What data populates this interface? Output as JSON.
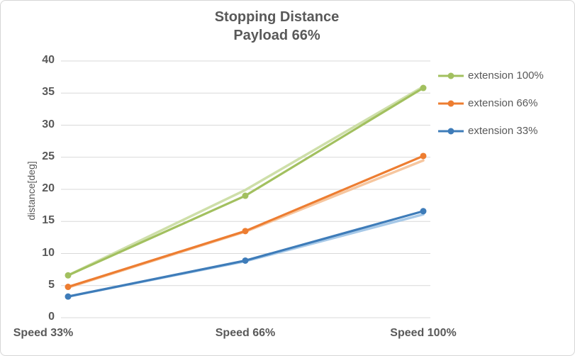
{
  "title": {
    "line1": "Stopping Distance",
    "line2": "Payload 66%"
  },
  "axes": {
    "y_label": "distance[deg]",
    "y_ticks": [
      0,
      5,
      10,
      15,
      20,
      25,
      30,
      35,
      40
    ],
    "x_categories": [
      "Speed 33%",
      "Speed 66%",
      "Speed 100%"
    ]
  },
  "legend": {
    "items": [
      {
        "label": "extension 100%"
      },
      {
        "label": "extension 66%"
      },
      {
        "label": "extension 33%"
      }
    ]
  },
  "colors": {
    "grid": "#D9D9D9",
    "text": "#595959",
    "frame": "#D6D6D6"
  },
  "chart_data": {
    "type": "line",
    "title": "Stopping Distance Payload 66%",
    "xlabel": "",
    "ylabel": "distance[deg]",
    "ylim": [
      0,
      40
    ],
    "grid": true,
    "legend_position": "right",
    "categories": [
      "Speed 33%",
      "Speed 66%",
      "Speed 100%"
    ],
    "series": [
      {
        "name": "extension 100%",
        "color": "#A2C05F",
        "shadow_color": "#C9DCA0",
        "values": [
          6.6,
          19.0,
          35.8
        ],
        "shadow_values": [
          6.6,
          19.9,
          36.0
        ]
      },
      {
        "name": "extension 66%",
        "color": "#ED7D31",
        "shadow_color": "#F5C095",
        "values": [
          4.8,
          13.5,
          25.2
        ],
        "shadow_values": [
          4.7,
          13.4,
          24.5
        ]
      },
      {
        "name": "extension 33%",
        "color": "#3E7CB9",
        "shadow_color": "#9DC3E6",
        "values": [
          3.3,
          8.9,
          16.6
        ],
        "shadow_values": [
          3.3,
          8.8,
          16.1
        ]
      }
    ]
  }
}
